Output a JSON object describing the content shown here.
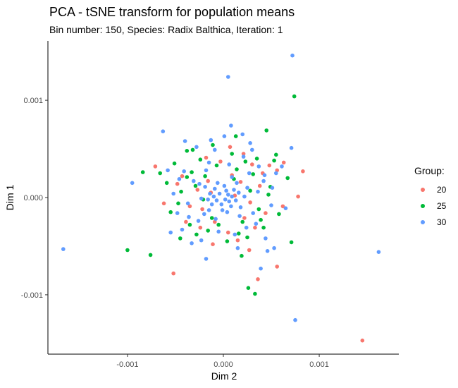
{
  "chart_data": {
    "type": "scatter",
    "title": "PCA - tSNE transform for population means",
    "subtitle": "Bin number: 150, Species: Radix Balthica, Iteration: 1",
    "xlabel": "Dim 2",
    "ylabel": "Dim 1",
    "xlim": [
      -0.00183,
      0.00183
    ],
    "ylim": [
      -0.00161,
      0.00161
    ],
    "x_ticks": [
      {
        "value": -0.001,
        "label": "-0.001"
      },
      {
        "value": 0.0,
        "label": "0.000"
      },
      {
        "value": 0.001,
        "label": "0.001"
      }
    ],
    "y_ticks": [
      {
        "value": -0.001,
        "label": "-0.001"
      },
      {
        "value": 0.0,
        "label": "0.000"
      },
      {
        "value": 0.001,
        "label": "0.001"
      }
    ],
    "grid": false,
    "legend": {
      "title": "Group:",
      "position": "right"
    },
    "series": [
      {
        "name": "20",
        "color": "#F8766D",
        "points": [
          [
            0.00145,
            -0.00147
          ],
          [
            -0.00052,
            -0.00078
          ],
          [
            0.00056,
            -0.00071
          ],
          [
            0.00036,
            -0.00084
          ],
          [
            0.00083,
            0.00027
          ],
          [
            0.00078,
            1e-05
          ],
          [
            0.00063,
            0.00036
          ],
          [
            -0.00071,
            0.00032
          ],
          [
            -0.00013,
            5e-05
          ],
          [
            0.00012,
            2e-05
          ],
          [
            0.00018,
            0.00016
          ],
          [
            0.00022,
            -0.00021
          ],
          [
            -0.00022,
            -0.00012
          ],
          [
            -9e-05,
            -0.00025
          ],
          [
            9e-05,
            0.00023
          ],
          [
            -0.00016,
            0.00017
          ],
          [
            -0.00035,
            -9e-05
          ],
          [
            0.00038,
            0.00012
          ],
          [
            0.00048,
            0.00033
          ],
          [
            0.00033,
            -0.00031
          ],
          [
            -0.00043,
            0.00022
          ],
          [
            5e-05,
            -0.00036
          ],
          [
            -3e-05,
            0.00037
          ],
          [
            0.00028,
            -5e-05
          ],
          [
            -0.00027,
            8e-05
          ],
          [
            0.00062,
            -9e-05
          ],
          [
            -0.00062,
            -6e-05
          ],
          [
            0.00041,
            0.00025
          ],
          [
            -0.00039,
            -0.00025
          ],
          [
            0.00015,
            -0.00044
          ],
          [
            -0.00018,
            0.00041
          ],
          [
            0.00021,
            0.00045
          ],
          [
            0.00056,
            0.00028
          ],
          [
            -0.00024,
            -0.00031
          ],
          [
            0.00044,
            -0.00016
          ],
          [
            0.00027,
            -0.00054
          ],
          [
            -0.00048,
            0.00014
          ],
          [
            7e-05,
            0.00052
          ],
          [
            -0.00011,
            -0.00048
          ],
          [
            0.0003,
            0.00034
          ]
        ]
      },
      {
        "name": "25",
        "color": "#00BA38",
        "points": [
          [
            0.00074,
            0.00104
          ],
          [
            0.00045,
            0.00069
          ],
          [
            0.00013,
            0.00063
          ],
          [
            -0.00038,
            0.00048
          ],
          [
            0.00071,
            -0.00046
          ],
          [
            -0.001,
            -0.00054
          ],
          [
            -0.00076,
            -0.00059
          ],
          [
            0.00026,
            -0.00093
          ],
          [
            0.00033,
            -0.00099
          ],
          [
            -0.00084,
            0.00026
          ],
          [
            -0.00066,
            0.00025
          ],
          [
            0.00053,
            0.00038
          ],
          [
            0.00067,
            0.0002
          ],
          [
            -0.00055,
            -0.00015
          ],
          [
            -0.00045,
            -0.00042
          ],
          [
            0.00023,
            0.00037
          ],
          [
            -0.00029,
            0.00012
          ],
          [
            0.0002,
            -0.00025
          ],
          [
            -0.00012,
            -0.00021
          ],
          [
            0.00011,
            0.00019
          ],
          [
            0.00028,
            7e-05
          ],
          [
            -0.00021,
            -2e-05
          ],
          [
            0.00037,
            -0.00012
          ],
          [
            -0.00033,
            0.00026
          ],
          [
            0.00016,
            -0.00037
          ],
          [
            -7e-05,
            0.00033
          ],
          [
            0.00049,
            0.00011
          ],
          [
            -0.00047,
            -6e-05
          ],
          [
            0.00042,
            -0.00031
          ],
          [
            -0.00024,
            0.00039
          ],
          [
            4e-05,
            -0.00045
          ],
          [
            -0.00016,
            -0.00034
          ],
          [
            0.00031,
            0.00024
          ],
          [
            -0.00038,
            0.00021
          ],
          [
            0.00058,
            -0.00017
          ],
          [
            -0.00059,
            0.00015
          ],
          [
            0.00025,
            -0.00041
          ],
          [
            -0.00028,
            -0.00038
          ],
          [
            9e-05,
            0.00045
          ],
          [
            -0.00051,
            0.00035
          ],
          [
            0.00035,
            0.0004
          ],
          [
            0.00019,
            -0.0006
          ],
          [
            -0.00011,
            0.00054
          ],
          [
            -0.00035,
            -0.00028
          ],
          [
            0.00047,
            3e-05
          ],
          [
            -0.00044,
            6e-05
          ],
          [
            0.00014,
            0.00029
          ],
          [
            -5e-05,
            -0.00028
          ],
          [
            0.00039,
            -0.00023
          ],
          [
            -0.00019,
            0.00022
          ],
          [
            0.00055,
            0.00044
          ],
          [
            -0.00032,
            0.00049
          ]
        ]
      },
      {
        "name": "30",
        "color": "#619CFF",
        "points": [
          [
            0.00072,
            0.00146
          ],
          [
            5e-05,
            0.00124
          ],
          [
            0.00043,
            0.00023
          ],
          [
            -0.00063,
            0.00068
          ],
          [
            -0.00167,
            -0.00053
          ],
          [
            -0.00095,
            0.00015
          ],
          [
            0.00162,
            -0.00056
          ],
          [
            0.00075,
            -0.00126
          ],
          [
            -0.00018,
            -0.00063
          ],
          [
            0.00039,
            -0.00073
          ],
          [
            0.00053,
            -0.00052
          ],
          [
            0.00071,
            0.00051
          ],
          [
            8e-05,
            0.00074
          ],
          [
            -0.00013,
            0.00059
          ],
          [
            0.00028,
            0.00056
          ],
          [
            -0.00043,
            -0.00033
          ],
          [
            0.00061,
            0.00032
          ],
          [
            -0.00058,
            0.00028
          ],
          [
            0.00065,
            -0.00011
          ],
          [
            -0.00048,
            -0.00016
          ],
          [
            2e-05,
            -2e-05
          ],
          [
            5e-05,
            3e-05
          ],
          [
            -4e-05,
            4e-05
          ],
          [
            6e-05,
            -4e-05
          ],
          [
            -7e-05,
            -3e-05
          ],
          [
            3e-05,
            7e-05
          ],
          [
            -2e-05,
            -7e-05
          ],
          [
            9e-05,
            1e-05
          ],
          [
            -0.0001,
            1e-05
          ],
          [
            0.00011,
            8e-05
          ],
          [
            -9e-05,
            9e-05
          ],
          [
            8e-05,
            -9e-05
          ],
          [
            -0.00012,
            -7e-05
          ],
          [
            0.00013,
            -3e-05
          ],
          [
            -0.00014,
            4e-05
          ],
          [
            1e-05,
            0.00012
          ],
          [
            -1e-05,
            -0.00013
          ],
          [
            0.00016,
            5e-05
          ],
          [
            -0.00016,
            -2e-05
          ],
          [
            4e-05,
            -0.00015
          ],
          [
            -6e-05,
            0.00015
          ],
          [
            0.00018,
            -0.0001
          ],
          [
            -0.00019,
            0.00011
          ],
          [
            0.00014,
            0.00015
          ],
          [
            -0.00015,
            -0.00013
          ],
          [
            0.00022,
            1e-05
          ],
          [
            -0.00023,
            -1e-05
          ],
          [
            9e-05,
            0.00021
          ],
          [
            -8e-05,
            -0.00022
          ],
          [
            0.00025,
            0.0001
          ],
          [
            -0.00025,
            0.00014
          ],
          [
            0.00017,
            -0.00019
          ],
          [
            -0.0002,
            -0.00017
          ],
          [
            0.00031,
            -0.00016
          ],
          [
            -0.00031,
            0.00017
          ],
          [
            0.00027,
            0.00025
          ],
          [
            -0.00026,
            -0.00024
          ],
          [
            0.00036,
            6e-05
          ],
          [
            -0.00037,
            -6e-05
          ],
          [
            6e-05,
            0.00034
          ],
          [
            -5e-05,
            -0.00035
          ],
          [
            0.00042,
            0.00017
          ],
          [
            -0.00041,
            0.00027
          ],
          [
            0.00034,
            -0.00027
          ],
          [
            -0.00036,
            -0.0002
          ],
          [
            0.00012,
            -0.00038
          ],
          [
            -0.00015,
            0.00036
          ],
          [
            0.0005,
            -8e-05
          ],
          [
            -0.00052,
            4e-05
          ],
          [
            0.00021,
            0.00042
          ],
          [
            -0.00023,
            -0.00044
          ],
          [
            0.0003,
            0.00049
          ],
          [
            -0.00028,
            0.00052
          ],
          [
            0.00055,
            0.00025
          ],
          [
            -0.00055,
            -0.00036
          ],
          [
            0.00044,
            -0.00042
          ],
          [
            -0.00033,
            -0.00047
          ],
          [
            1e-05,
            0.00063
          ],
          [
            0.0002,
            0.00065
          ],
          [
            -0.0004,
            0.00058
          ],
          [
            0.00046,
            -0.00055
          ],
          [
            -9e-05,
            0.00049
          ],
          [
            0.00015,
            -0.00052
          ],
          [
            0.00037,
            0.00032
          ],
          [
            0.00051,
            0.0001
          ],
          [
            -0.00046,
            0.00019
          ],
          [
            0.00024,
            -0.00031
          ],
          [
            -0.00018,
            0.00028
          ]
        ]
      }
    ]
  }
}
